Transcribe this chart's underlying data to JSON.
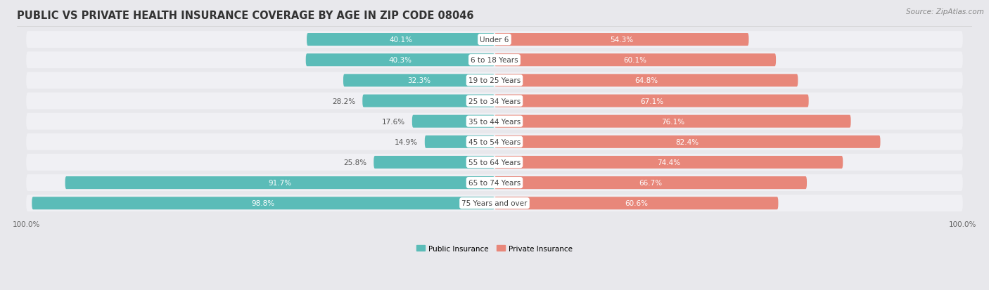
{
  "title": "PUBLIC VS PRIVATE HEALTH INSURANCE COVERAGE BY AGE IN ZIP CODE 08046",
  "source": "Source: ZipAtlas.com",
  "categories": [
    "Under 6",
    "6 to 18 Years",
    "19 to 25 Years",
    "25 to 34 Years",
    "35 to 44 Years",
    "45 to 54 Years",
    "55 to 64 Years",
    "65 to 74 Years",
    "75 Years and over"
  ],
  "public_values": [
    40.1,
    40.3,
    32.3,
    28.2,
    17.6,
    14.9,
    25.8,
    91.7,
    98.8
  ],
  "private_values": [
    54.3,
    60.1,
    64.8,
    67.1,
    76.1,
    82.4,
    74.4,
    66.7,
    60.6
  ],
  "public_color": "#5bbcb8",
  "private_color": "#e8877a",
  "bg_color": "#e8e8ec",
  "row_bg_color": "#f0f0f4",
  "max_value": 100.0,
  "legend_labels": [
    "Public Insurance",
    "Private Insurance"
  ],
  "title_fontsize": 10.5,
  "source_fontsize": 7.5,
  "bar_label_fontsize": 7.5,
  "cat_label_fontsize": 7.5,
  "axis_label_fontsize": 7.5,
  "pub_label_threshold": 30,
  "priv_label_threshold": 30
}
